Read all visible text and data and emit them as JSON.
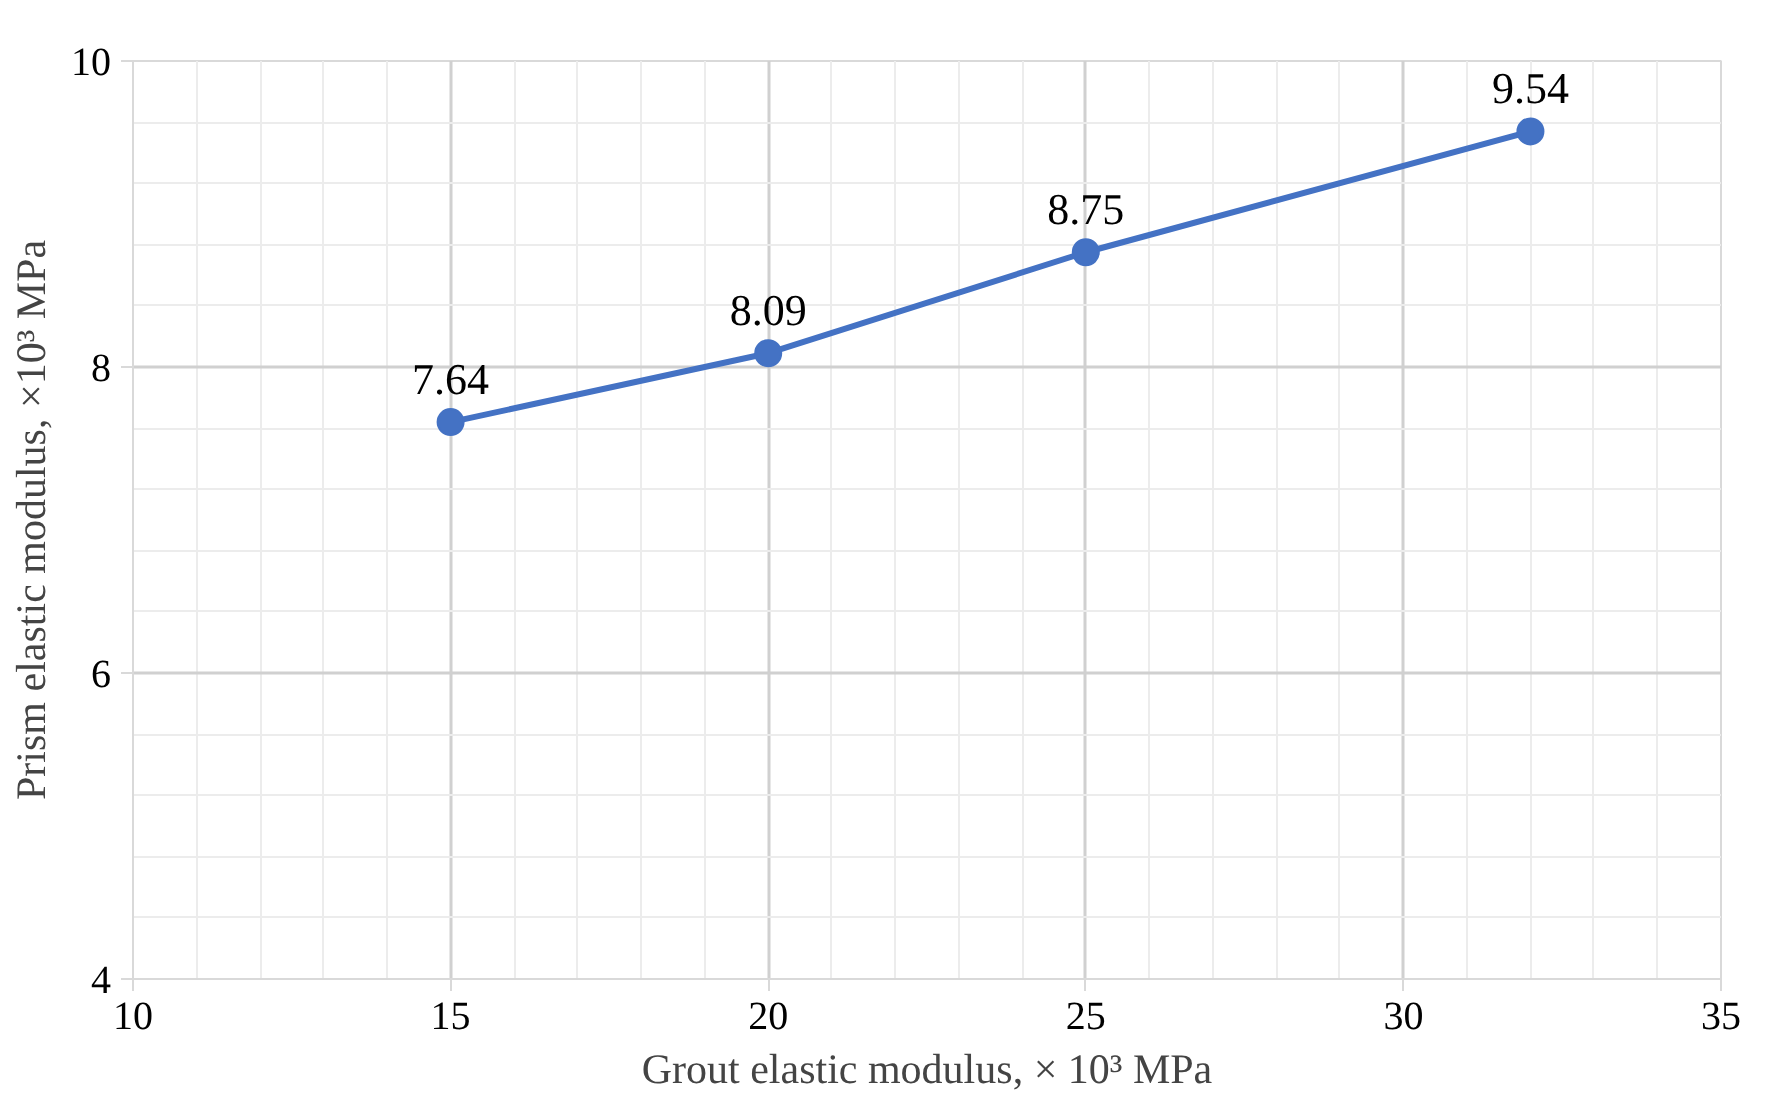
{
  "chart_data": {
    "type": "line",
    "xlabel": "Grout elastic modulus, × 10³ MPa",
    "ylabel": "Prism elastic modulus, ×10³ MPa",
    "x": [
      15,
      20,
      25,
      32
    ],
    "series": [
      {
        "color": "#4472c4",
        "values": [
          7.64,
          8.09,
          8.75,
          9.54
        ]
      }
    ],
    "xlim": [
      10,
      35
    ],
    "xticks": [
      10,
      15,
      20,
      25,
      30,
      35
    ],
    "ylim": [
      4,
      10
    ],
    "yticks": [
      4,
      6,
      8,
      10
    ],
    "grid": true,
    "marker": "circle",
    "line_style": "solid",
    "data_labels": true
  }
}
